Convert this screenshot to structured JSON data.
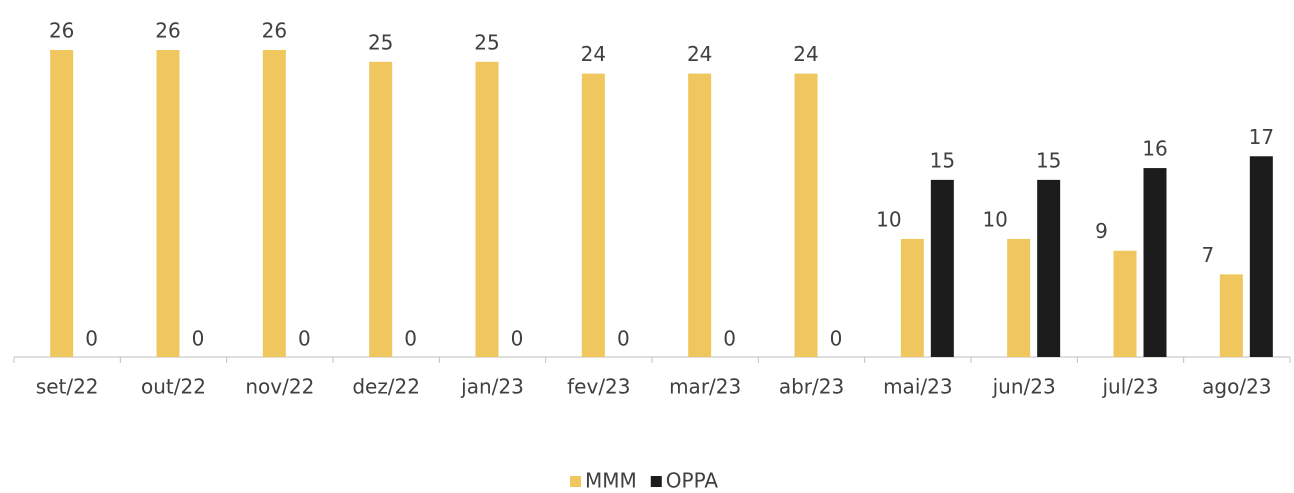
{
  "chart_data": {
    "type": "bar",
    "categories": [
      "set/22",
      "out/22",
      "nov/22",
      "dez/22",
      "jan/23",
      "fev/23",
      "mar/23",
      "abr/23",
      "mai/23",
      "jun/23",
      "jul/23",
      "ago/23"
    ],
    "series": [
      {
        "name": "MMM",
        "color": "#f0c75e",
        "values": [
          26,
          26,
          26,
          25,
          25,
          24,
          24,
          24,
          10,
          10,
          9,
          7
        ]
      },
      {
        "name": "OPPA",
        "color": "#1c1c1c",
        "values": [
          0,
          0,
          0,
          0,
          0,
          0,
          0,
          0,
          15,
          15,
          16,
          17
        ]
      }
    ]
  }
}
